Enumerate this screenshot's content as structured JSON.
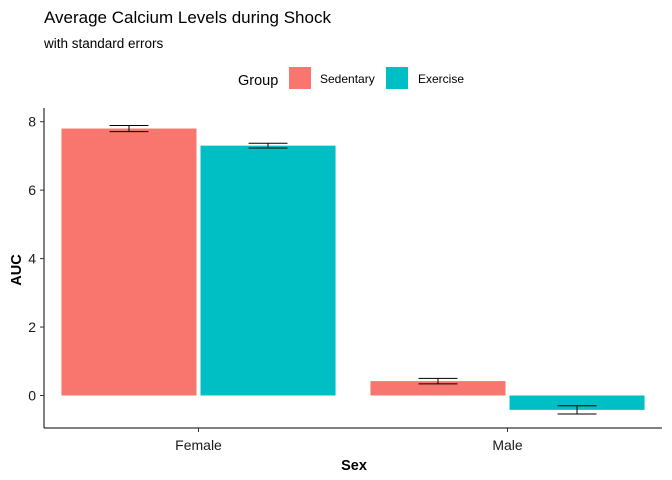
{
  "chart_data": {
    "type": "bar",
    "title": "Average Calcium Levels during Shock",
    "subtitle": "with standard errors",
    "xlabel": "Sex",
    "ylabel": "AUC",
    "categories": [
      "Female",
      "Male"
    ],
    "legend_title": "Group",
    "legend_position": "top",
    "series": [
      {
        "name": "Sedentary",
        "color": "#F8766D",
        "values": [
          7.8,
          0.42
        ],
        "se": [
          0.09,
          0.08
        ]
      },
      {
        "name": "Exercise",
        "color": "#00BFC4",
        "values": [
          7.3,
          -0.42
        ],
        "se": [
          0.07,
          0.12
        ]
      }
    ],
    "ylim": [
      -0.95,
      8.4
    ],
    "yticks": [
      0,
      2,
      4,
      6,
      8
    ],
    "grid": false
  }
}
